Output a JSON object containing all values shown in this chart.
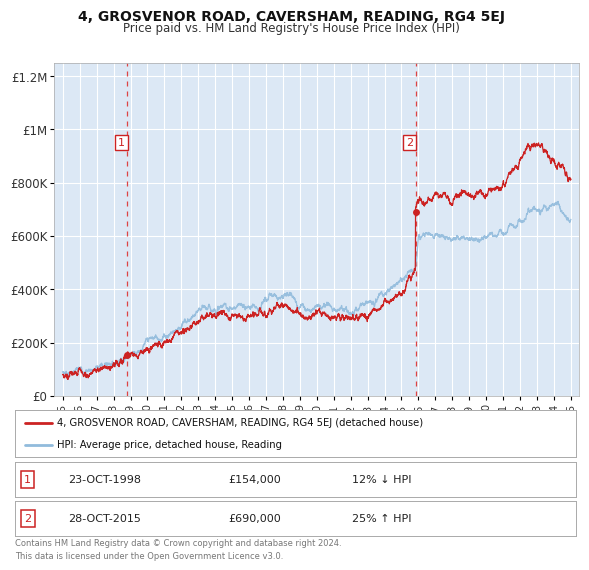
{
  "title": "4, GROSVENOR ROAD, CAVERSHAM, READING, RG4 5EJ",
  "subtitle": "Price paid vs. HM Land Registry's House Price Index (HPI)",
  "bg_color": "#ffffff",
  "plot_bg_color": "#dce8f5",
  "grid_color": "#ffffff",
  "sale1": {
    "date_num": 1998.81,
    "price": 154000,
    "label": "1",
    "date_str": "23-OCT-1998",
    "pct": "12% ↓ HPI"
  },
  "sale2": {
    "date_num": 2015.83,
    "price": 690000,
    "label": "2",
    "date_str": "28-OCT-2015",
    "pct": "25% ↑ HPI"
  },
  "hpi_color": "#91bbdc",
  "price_color": "#cc2222",
  "vline_color": "#dd4444",
  "xmin": 1994.5,
  "xmax": 2025.5,
  "ymin": 0,
  "ymax": 1250000,
  "yticks": [
    0,
    200000,
    400000,
    600000,
    800000,
    1000000,
    1200000
  ],
  "ytick_labels": [
    "£0",
    "£200K",
    "£400K",
    "£600K",
    "£800K",
    "£1M",
    "£1.2M"
  ],
  "xtick_years": [
    1995,
    1996,
    1997,
    1998,
    1999,
    2000,
    2001,
    2002,
    2003,
    2004,
    2005,
    2006,
    2007,
    2008,
    2009,
    2010,
    2011,
    2012,
    2013,
    2014,
    2015,
    2016,
    2017,
    2018,
    2019,
    2020,
    2021,
    2022,
    2023,
    2024,
    2025
  ],
  "legend_label1": "4, GROSVENOR ROAD, CAVERSHAM, READING, RG4 5EJ (detached house)",
  "legend_label2": "HPI: Average price, detached house, Reading",
  "footer1": "Contains HM Land Registry data © Crown copyright and database right 2024.",
  "footer2": "This data is licensed under the Open Government Licence v3.0.",
  "row1_num": "1",
  "row1_date": "23-OCT-1998",
  "row1_price": "£154,000",
  "row1_pct": "12% ↓ HPI",
  "row2_num": "2",
  "row2_date": "28-OCT-2015",
  "row2_price": "£690,000",
  "row2_pct": "25% ↑ HPI"
}
